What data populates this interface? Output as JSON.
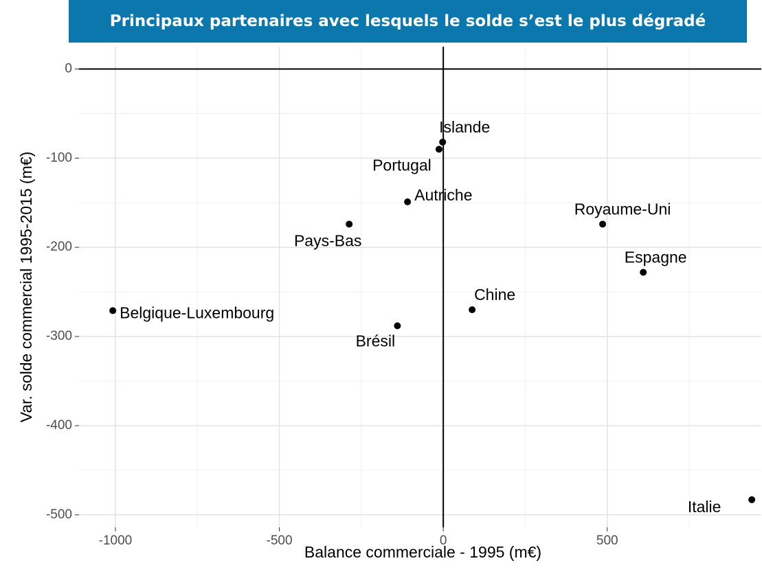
{
  "chart_data": {
    "type": "scatter",
    "title": "Principaux partenaires avec lesquels le solde s’est le plus dégradé",
    "x_label": "Balance commerciale - 1995 (m€)",
    "y_label": "Var. solde commercial 1995-2015 (m€)",
    "labels": [
      "Belgique-Luxembourg",
      "Pays-Bas",
      "Autriche",
      "Portugal",
      "Islande",
      "Brésil",
      "Chine",
      "Royaume-Uni",
      "Espagne",
      "Italie"
    ],
    "x": [
      -1008,
      -287,
      -109,
      -13,
      -2,
      -140,
      88,
      486,
      610,
      941
    ],
    "values": [
      -271,
      -174,
      -149,
      -90,
      -82,
      -288,
      -270,
      -174,
      -228,
      -483
    ],
    "color": "#000000",
    "xlim": [
      -1111,
      970
    ],
    "xticks": [
      -1000,
      -500,
      0,
      500
    ],
    "ylim": [
      -514,
      25
    ],
    "yticks": [
      0,
      -100,
      -200,
      -300,
      -400,
      -500
    ],
    "grid": true
  }
}
